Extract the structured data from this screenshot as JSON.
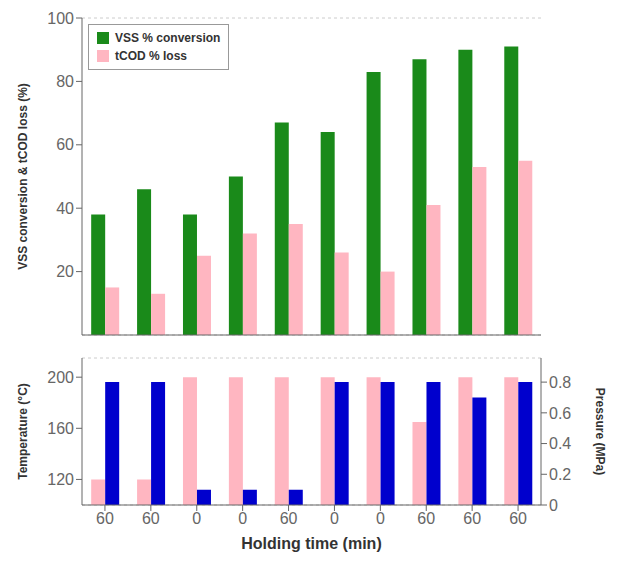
{
  "chart_data": [
    {
      "type": "bar",
      "categories": [
        "60",
        "60",
        "0",
        "0",
        "60",
        "0",
        "0",
        "60",
        "60",
        "60"
      ],
      "tick_labels": "y",
      "ylabel": "VSS conversion & tCOD loss (%)",
      "ylim": [
        0,
        100
      ],
      "yticks": [
        20,
        40,
        60,
        80,
        100
      ],
      "grid": true,
      "legend": "upper left",
      "series": [
        {
          "name": "VSS % conversion",
          "color": "#1a8a1a",
          "values": [
            38,
            46,
            38,
            50,
            67,
            64,
            83,
            87,
            90,
            91
          ]
        },
        {
          "name": "tCOD % loss",
          "color": "#ffb6c1",
          "values": [
            15,
            13,
            25,
            32,
            35,
            26,
            20,
            41,
            53,
            55
          ]
        }
      ]
    },
    {
      "type": "bar",
      "categories": [
        "60",
        "60",
        "0",
        "0",
        "60",
        "0",
        "0",
        "60",
        "60",
        "60"
      ],
      "xlabel": "Holding time (min)",
      "ylabel": "Temperature (°C)",
      "y2label": "Pressure (MPa)",
      "ylim": [
        100,
        215
      ],
      "yticks": [
        120,
        160,
        200
      ],
      "y2lim": [
        0,
        0.957
      ],
      "y2ticks": [
        0,
        0.2,
        0.4,
        0.6,
        0.8
      ],
      "grid": true,
      "series": [
        {
          "color": "#ffb6c1",
          "values": [
            120,
            120,
            200,
            200,
            200,
            200,
            200,
            165,
            200,
            200
          ]
        },
        {
          "color": "#0000cd",
          "axis": "y2",
          "values": [
            0.8,
            0.8,
            0.1,
            0.1,
            0.1,
            0.8,
            0.8,
            0.8,
            0.7,
            0.8
          ]
        }
      ]
    }
  ]
}
